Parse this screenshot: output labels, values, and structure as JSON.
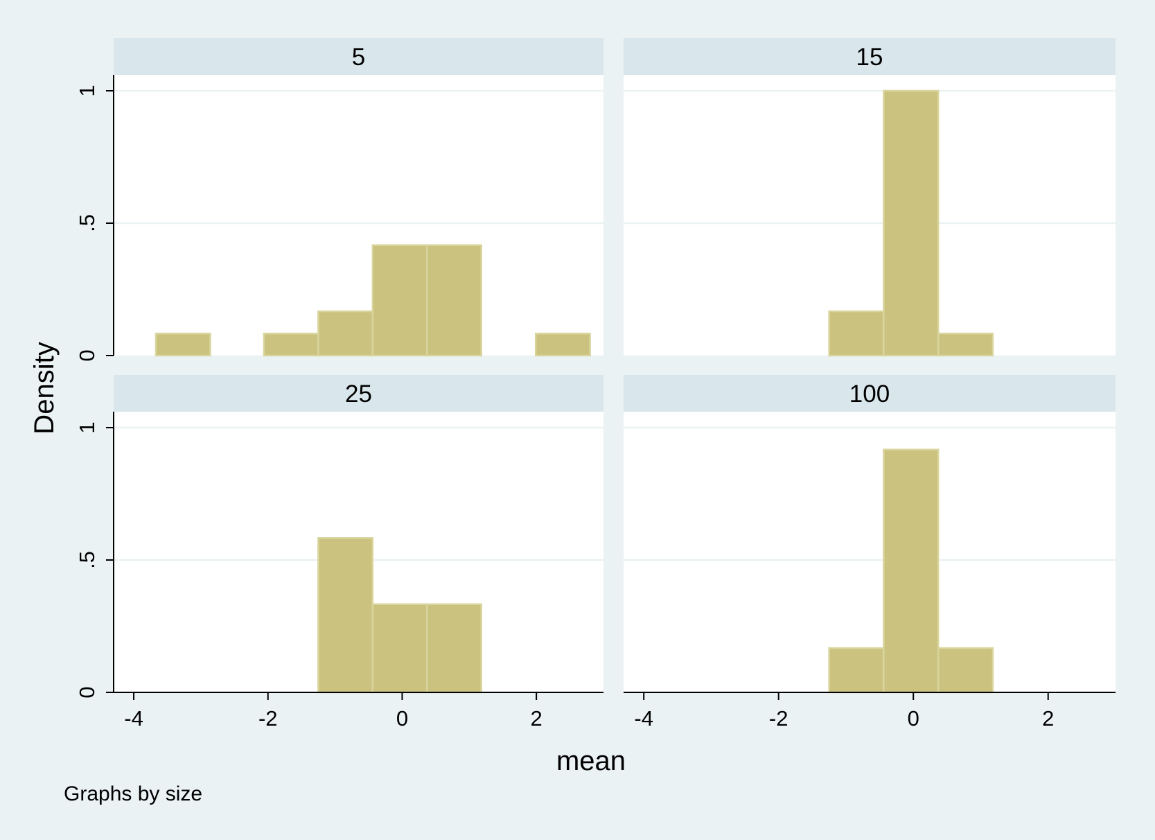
{
  "chart_data": {
    "type": "bar",
    "title": "",
    "xlabel": "mean",
    "ylabel": "Density",
    "note": "Graphs by size",
    "xlim": [
      -4.3,
      3.0
    ],
    "ylim": [
      0,
      1.05
    ],
    "x_ticks": [
      {
        "value": -4,
        "label": "-4"
      },
      {
        "value": -2,
        "label": "-2"
      },
      {
        "value": 0,
        "label": "0"
      },
      {
        "value": 2,
        "label": "2"
      }
    ],
    "y_ticks": [
      {
        "value": 0,
        "label": "0"
      },
      {
        "value": 0.5,
        "label": ".5"
      },
      {
        "value": 1,
        "label": "1"
      }
    ],
    "grid": true,
    "bin_width": 0.81,
    "colors": {
      "bar_fill": "#cac27e",
      "bar_outline": "#d9d59d",
      "strip": "#d9e6eb",
      "background": "#eaf2f3"
    },
    "panels": [
      {
        "label": "5",
        "bins": [
          {
            "x0": -3.67,
            "x1": -2.86,
            "density": 0.083
          },
          {
            "x0": -2.06,
            "x1": -1.25,
            "density": 0.083
          },
          {
            "x0": -1.25,
            "x1": -0.44,
            "density": 0.167
          },
          {
            "x0": -0.44,
            "x1": 0.37,
            "density": 0.417
          },
          {
            "x0": 0.37,
            "x1": 1.18,
            "density": 0.417
          },
          {
            "x0": 1.99,
            "x1": 2.8,
            "density": 0.083
          }
        ]
      },
      {
        "label": "15",
        "bins": [
          {
            "x0": -1.25,
            "x1": -0.44,
            "density": 0.167
          },
          {
            "x0": -0.44,
            "x1": 0.37,
            "density": 1.0
          },
          {
            "x0": 0.37,
            "x1": 1.18,
            "density": 0.083
          }
        ]
      },
      {
        "label": "25",
        "bins": [
          {
            "x0": -1.25,
            "x1": -0.44,
            "density": 0.583
          },
          {
            "x0": -0.44,
            "x1": 0.37,
            "density": 0.333
          },
          {
            "x0": 0.37,
            "x1": 1.18,
            "density": 0.333
          }
        ]
      },
      {
        "label": "100",
        "bins": [
          {
            "x0": -1.25,
            "x1": -0.44,
            "density": 0.167
          },
          {
            "x0": -0.44,
            "x1": 0.37,
            "density": 0.917
          },
          {
            "x0": 0.37,
            "x1": 1.18,
            "density": 0.167
          }
        ]
      }
    ]
  }
}
